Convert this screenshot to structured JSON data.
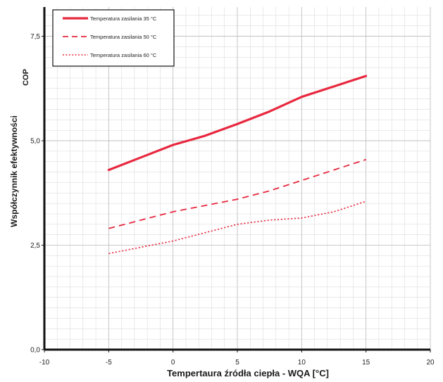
{
  "chart_data": {
    "type": "line",
    "xlabel": "Tempertaura  źródła ciepła - WQA [°C]",
    "ylabel": "Współczynnik efektywności",
    "ylabel_secondary": "COP",
    "xlim": [
      -10,
      20
    ],
    "ylim": [
      0,
      8.2
    ],
    "x_ticks": [
      -10,
      -5,
      0,
      5,
      10,
      15,
      20
    ],
    "x_tick_labels": [
      "-10",
      "-5",
      "0",
      "5",
      "10",
      "15",
      "20"
    ],
    "y_ticks": [
      0,
      2.5,
      5,
      7.5
    ],
    "y_tick_labels": [
      "0,0",
      "2,5",
      "5,0",
      "7,5"
    ],
    "grid": true,
    "legend_position": "top-left",
    "series": [
      {
        "name": "Temperatura zasilania 35 °C",
        "style": "solid",
        "color": "#e8283f",
        "x": [
          -5,
          -2.5,
          0,
          2.5,
          5,
          7.5,
          10,
          12.5,
          15
        ],
        "y": [
          4.3,
          4.6,
          4.9,
          5.12,
          5.4,
          5.7,
          6.05,
          6.3,
          6.55
        ]
      },
      {
        "name": "Temperatura zasilania 50 °C",
        "style": "dashed",
        "color": "#e8283f",
        "x": [
          -5,
          -2.5,
          0,
          2.5,
          5,
          7.5,
          10,
          12.5,
          15
        ],
        "y": [
          2.9,
          3.1,
          3.3,
          3.45,
          3.6,
          3.8,
          4.05,
          4.3,
          4.55
        ]
      },
      {
        "name": "Temperatura zasilania 60 °C",
        "style": "dotted",
        "color": "#e8283f",
        "x": [
          -5,
          -2.5,
          0,
          2.5,
          5,
          7.5,
          10,
          12.5,
          15
        ],
        "y": [
          2.3,
          2.45,
          2.6,
          2.8,
          3.0,
          3.1,
          3.15,
          3.3,
          3.55
        ]
      }
    ]
  }
}
